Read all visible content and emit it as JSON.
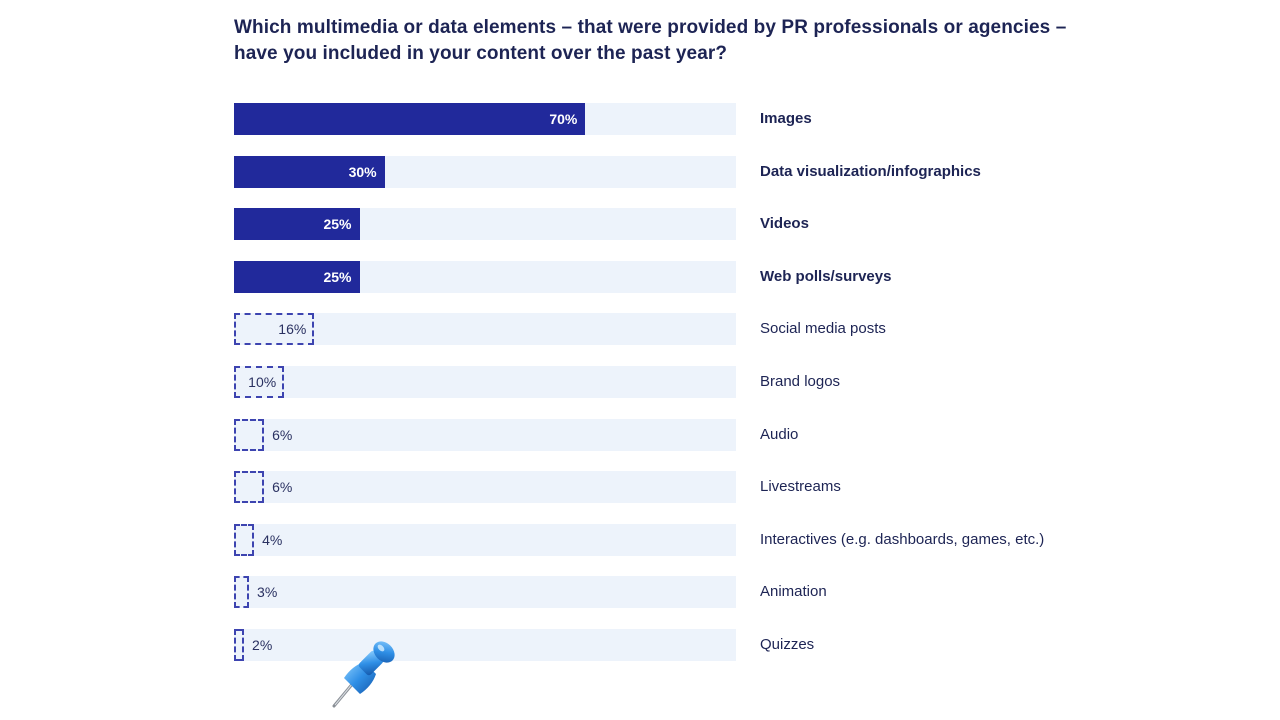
{
  "title": "Which multimedia or data elements – that were provided by PR professionals or agencies – have you included in your content over the past year?",
  "chart_data": {
    "type": "bar",
    "orientation": "horizontal",
    "title": "Which multimedia or data elements – that were provided by PR professionals or agencies – have you included in your content over the past year?",
    "xlim": [
      0,
      100
    ],
    "unit": "%",
    "categories": [
      "Images",
      "Data visualization/infographics",
      "Videos",
      "Web polls/surveys",
      "Social media posts",
      "Brand logos",
      "Audio",
      "Livestreams",
      "Interactives (e.g. dashboards, games, etc.)",
      "Animation",
      "Quizzes"
    ],
    "values": [
      70,
      30,
      25,
      25,
      16,
      10,
      6,
      6,
      4,
      3,
      2
    ],
    "labels": [
      "70%",
      "30%",
      "25%",
      "25%",
      "16%",
      "10%",
      "6%",
      "6%",
      "4%",
      "3%",
      "2%"
    ],
    "highlighted": [
      true,
      true,
      true,
      true,
      false,
      false,
      false,
      false,
      false,
      false,
      false
    ],
    "colors": {
      "highlight_fill": "#21299b",
      "dashed_outline": "#3d44b0",
      "track": "#edf3fb",
      "text_dark": "#1d2454"
    }
  },
  "decoration": {
    "pin_icon": "pushpin-icon"
  }
}
